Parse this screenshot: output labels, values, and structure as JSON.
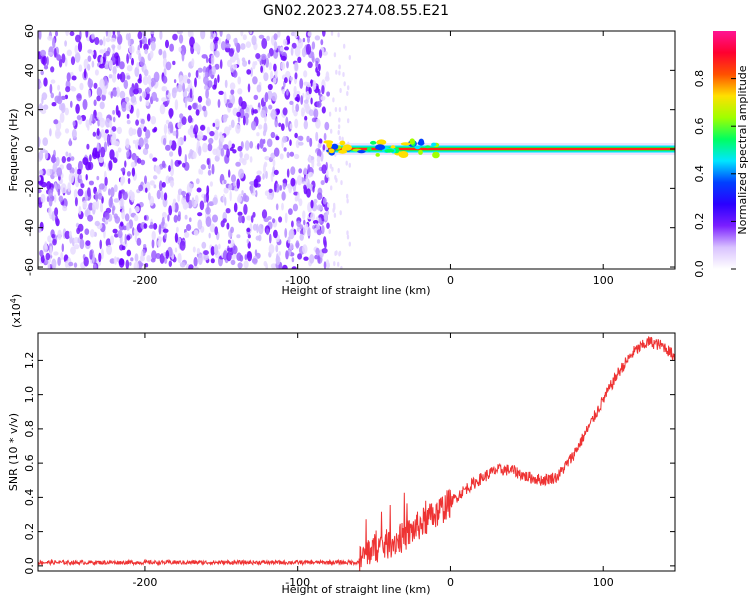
{
  "title": "GN02.2023.274.08.55.E21",
  "chart_data": [
    {
      "type": "heatmap",
      "xlabel": "Height of straight line (km)",
      "ylabel": "Frequency (Hz)",
      "xlim": [
        -270,
        147
      ],
      "ylim": [
        -61,
        60
      ],
      "xticks": [
        "-200",
        "-100",
        "0",
        "100"
      ],
      "xtick_values": [
        -200,
        -100,
        0,
        100
      ],
      "yticks": [
        "60",
        "40",
        "20",
        "0",
        "-20",
        "-40",
        "-60"
      ],
      "ytick_values": [
        60,
        40,
        20,
        0,
        -20,
        -40,
        -60
      ],
      "colorbar": {
        "label": "Normalized spectral amplitude",
        "range": [
          0,
          1
        ],
        "ticks": [
          "0.0",
          "0.2",
          "0.4",
          "0.6",
          "0.8"
        ],
        "tick_values": [
          0,
          0.2,
          0.4,
          0.6,
          0.8
        ],
        "colors": [
          "#ffffff",
          "#d9c2ff",
          "#7a1fff",
          "#2a00ff",
          "#0040ff",
          "#00e6ff",
          "#00ff60",
          "#a0ff00",
          "#ffe000",
          "#ff5000",
          "#ff0030",
          "#ff1493"
        ]
      },
      "features": {
        "noise_region_x": [
          -270,
          -80
        ],
        "signal_line_frequency": 0,
        "signal_start_x": -80
      }
    },
    {
      "type": "line",
      "xlabel": "Height of straight line (km)",
      "ylabel": "SNR (10 * v/v)",
      "yscale_label": "(x10",
      "yscale_exp": "4",
      "yscale_suffix": ")",
      "xlim": [
        -270,
        147
      ],
      "ylim": [
        -0.03,
        1.36
      ],
      "xticks": [
        "-200",
        "-100",
        "0",
        "100"
      ],
      "xtick_values": [
        -200,
        -100,
        0,
        100
      ],
      "yticks": [
        "0.0",
        "0.2",
        "0.4",
        "0.6",
        "0.8",
        "1.0",
        "1.2"
      ],
      "ytick_values": [
        0,
        0.2,
        0.4,
        0.6,
        0.8,
        1.0,
        1.2
      ],
      "color": "#ee3333",
      "series": [
        {
          "x": [
            -270,
            -250,
            -200,
            -150,
            -100,
            -80,
            -60,
            -55,
            -50,
            -40,
            -30,
            -20,
            -10,
            0,
            10,
            20,
            30,
            40,
            50,
            60,
            70,
            80,
            90,
            100,
            110,
            120,
            130,
            140,
            147
          ],
          "values": [
            0.02,
            0.02,
            0.02,
            0.02,
            0.02,
            0.02,
            0.02,
            0.08,
            0.1,
            0.13,
            0.17,
            0.24,
            0.3,
            0.37,
            0.45,
            0.51,
            0.56,
            0.56,
            0.52,
            0.5,
            0.52,
            0.64,
            0.8,
            0.97,
            1.13,
            1.25,
            1.31,
            1.28,
            1.22
          ]
        }
      ]
    }
  ]
}
